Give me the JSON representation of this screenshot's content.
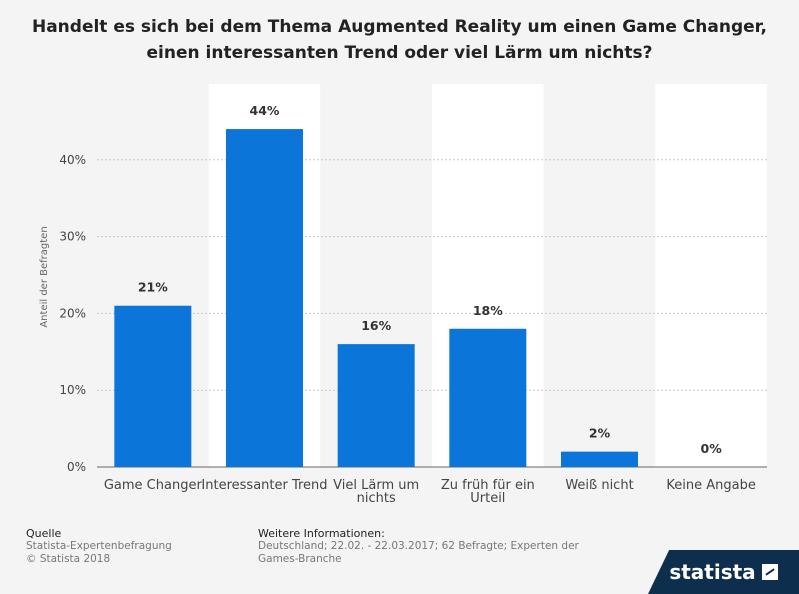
{
  "chart_data": {
    "type": "bar",
    "title": "Handelt es sich bei dem Thema Augmented Reality um einen Game Changer, einen interessanten Trend oder viel Lärm um nichts?",
    "title_lines": [
      "Handelt es sich bei dem Thema Augmented Reality um einen Game Changer,",
      "einen interessanten Trend oder viel Lärm um nichts?"
    ],
    "categories": [
      [
        "Game Changer"
      ],
      [
        "Interessanter Trend"
      ],
      [
        "Viel Lärm um",
        "nichts"
      ],
      [
        "Zu früh für ein",
        "Urteil"
      ],
      [
        "Weiß nicht"
      ],
      [
        "Keine Angabe"
      ]
    ],
    "values": [
      21,
      44,
      16,
      18,
      2,
      0
    ],
    "data_labels": [
      "21%",
      "44%",
      "16%",
      "18%",
      "2%",
      "0%"
    ],
    "ylabel": "Anteil der Befragten",
    "xlabel": "",
    "ylim": [
      0,
      50
    ],
    "yticks": [
      0,
      10,
      20,
      30,
      40
    ],
    "ytick_labels": [
      "0%",
      "10%",
      "20%",
      "30%",
      "40%"
    ],
    "grid": true,
    "bar_color": "#0c75d9"
  },
  "footer": {
    "source_heading": "Quelle",
    "source_lines": [
      "Statista-Expertenbefragung",
      "© Statista 2018"
    ],
    "info_heading": "Weitere Informationen:",
    "info_lines": [
      "Deutschland; 22.02. - 22.03.2017; 62 Befragte; Experten der",
      "Games-Branche"
    ]
  },
  "logo": {
    "text": "statista"
  }
}
